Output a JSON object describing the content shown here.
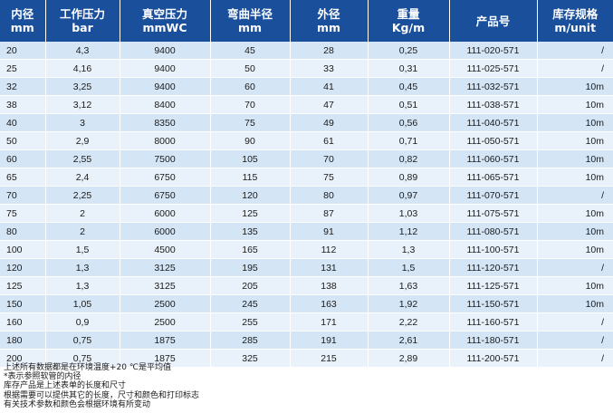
{
  "table": {
    "headers": [
      {
        "line1": "内径",
        "line2": "mm"
      },
      {
        "line1": "工作压力",
        "line2": "bar"
      },
      {
        "line1": "真空压力",
        "line2": "mmWC"
      },
      {
        "line1": "弯曲半径",
        "line2": "mm"
      },
      {
        "line1": "外径",
        "line2": "mm"
      },
      {
        "line1": "重量",
        "line2": "Kg/m"
      },
      {
        "line1": "产品号",
        "line2": ""
      },
      {
        "line1": "库存规格",
        "line2": "m/unit"
      }
    ],
    "rows": [
      [
        "20",
        "4,3",
        "9400",
        "45",
        "28",
        "0,25",
        "111-020-571",
        "/"
      ],
      [
        "25",
        "4,16",
        "9400",
        "50",
        "33",
        "0,31",
        "111-025-571",
        "/"
      ],
      [
        "32",
        "3,25",
        "9400",
        "60",
        "41",
        "0,45",
        "111-032-571",
        "10m"
      ],
      [
        "38",
        "3,12",
        "8400",
        "70",
        "47",
        "0,51",
        "111-038-571",
        "10m"
      ],
      [
        "40",
        "3",
        "8350",
        "75",
        "49",
        "0,56",
        "111-040-571",
        "10m"
      ],
      [
        "50",
        "2,9",
        "8000",
        "90",
        "61",
        "0,71",
        "111-050-571",
        "10m"
      ],
      [
        "60",
        "2,55",
        "7500",
        "105",
        "70",
        "0,82",
        "111-060-571",
        "10m"
      ],
      [
        "65",
        "2,4",
        "6750",
        "115",
        "75",
        "0,89",
        "111-065-571",
        "10m"
      ],
      [
        "70",
        "2,25",
        "6750",
        "120",
        "80",
        "0,97",
        "111-070-571",
        "/"
      ],
      [
        "75",
        "2",
        "6000",
        "125",
        "87",
        "1,03",
        "111-075-571",
        "10m"
      ],
      [
        "80",
        "2",
        "6000",
        "135",
        "91",
        "1,12",
        "111-080-571",
        "10m"
      ],
      [
        "100",
        "1,5",
        "4500",
        "165",
        "112",
        "1,3",
        "111-100-571",
        "10m"
      ],
      [
        "120",
        "1,3",
        "3125",
        "195",
        "131",
        "1,5",
        "111-120-571",
        "/"
      ],
      [
        "125",
        "1,3",
        "3125",
        "205",
        "138",
        "1,63",
        "111-125-571",
        "10m"
      ],
      [
        "150",
        "1,05",
        "2500",
        "245",
        "163",
        "1,92",
        "111-150-571",
        "10m"
      ],
      [
        "160",
        "0,9",
        "2500",
        "255",
        "171",
        "2,22",
        "111-160-571",
        "/"
      ],
      [
        "180",
        "0,75",
        "1875",
        "285",
        "191",
        "2,61",
        "111-180-571",
        "/"
      ],
      [
        "200",
        "0,75",
        "1875",
        "325",
        "215",
        "2,89",
        "111-200-571",
        "/"
      ]
    ]
  },
  "notes": [
    "上述所有数据都是在环境温度+20 ℃是平均值",
    "*表示参照软管的内径",
    "库存产品是上述表单的长度和尺寸",
    "根据需要可以提供其它的长度，尺寸和颜色和打印标志",
    "有关技术参数和颜色会根据环境有所变动"
  ],
  "colors": {
    "header_bg": "#1a4f9c",
    "row_odd": "#d4e5f6",
    "row_even": "#e9f2fb"
  }
}
